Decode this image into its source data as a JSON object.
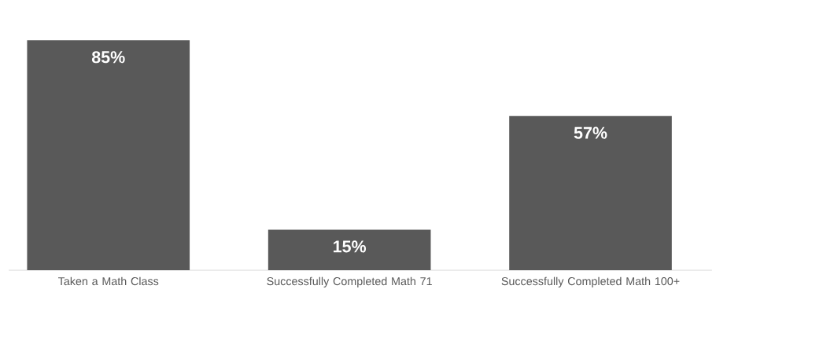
{
  "chart_data": {
    "type": "bar",
    "categories": [
      "Taken a Math Class",
      "Successfully Completed Math 71",
      "Successfully Completed Math 100+"
    ],
    "values": [
      85,
      15,
      57
    ],
    "value_labels": [
      "85%",
      "15%",
      "57%"
    ],
    "color": "#595959"
  }
}
